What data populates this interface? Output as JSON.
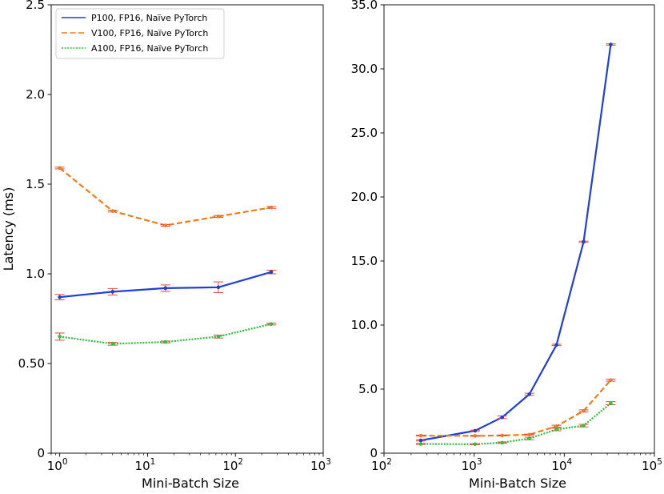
{
  "chart_data": [
    {
      "type": "line",
      "panel": "left",
      "xscale": "log",
      "xlim": [
        0.8,
        1000
      ],
      "ylim": [
        0,
        2.5
      ],
      "xlabel": "Mini-Batch Size",
      "ylabel": "Latency (ms)",
      "xticks": [
        {
          "value": 1,
          "base": "10",
          "exp": "0"
        },
        {
          "value": 10,
          "base": "10",
          "exp": "1"
        },
        {
          "value": 100,
          "base": "10",
          "exp": "2"
        },
        {
          "value": 1000,
          "base": "10",
          "exp": "3"
        }
      ],
      "yticks": [
        {
          "value": 0,
          "label": "0"
        },
        {
          "value": 0.5,
          "label": "0.50"
        },
        {
          "value": 1.0,
          "label": "1.0"
        },
        {
          "value": 1.5,
          "label": "1.5"
        },
        {
          "value": 2.0,
          "label": "2.0"
        },
        {
          "value": 2.5,
          "label": "2.5"
        }
      ],
      "legend_position": "top-left",
      "series": [
        {
          "name": "P100, FP16, Naïve PyTorch",
          "color": "#1f3fd8",
          "dash": "solid",
          "x": [
            1,
            4,
            16,
            64,
            256
          ],
          "y": [
            0.87,
            0.9,
            0.92,
            0.925,
            1.01
          ],
          "err": [
            0.015,
            0.018,
            0.018,
            0.03,
            0.01
          ]
        },
        {
          "name": "V100, FP16, Naïve PyTorch",
          "color": "#f07d18",
          "dash": "dashed",
          "x": [
            1,
            4,
            16,
            64,
            256
          ],
          "y": [
            1.59,
            1.35,
            1.27,
            1.32,
            1.37
          ],
          "err": [
            0.005,
            0.005,
            0.005,
            0.005,
            0.005
          ]
        },
        {
          "name": "A100, FP16, Naïve PyTorch",
          "color": "#2ec23a",
          "dash": "dotted",
          "x": [
            1,
            4,
            16,
            64,
            256
          ],
          "y": [
            0.65,
            0.61,
            0.62,
            0.65,
            0.72
          ],
          "err": [
            0.02,
            0.008,
            0.005,
            0.008,
            0.005
          ]
        }
      ]
    },
    {
      "type": "line",
      "panel": "right",
      "xscale": "log",
      "xlim": [
        100,
        100000
      ],
      "ylim": [
        0,
        35
      ],
      "xlabel": "Mini-Batch Size",
      "ylabel": "",
      "xticks": [
        {
          "value": 100,
          "base": "10",
          "exp": "2"
        },
        {
          "value": 1000,
          "base": "10",
          "exp": "3"
        },
        {
          "value": 10000,
          "base": "10",
          "exp": "4"
        },
        {
          "value": 100000,
          "base": "10",
          "exp": "5"
        }
      ],
      "yticks": [
        {
          "value": 0,
          "label": "0"
        },
        {
          "value": 5,
          "label": "5.0"
        },
        {
          "value": 10,
          "label": "10.0"
        },
        {
          "value": 15,
          "label": "15.0"
        },
        {
          "value": 20,
          "label": "20.0"
        },
        {
          "value": 25,
          "label": "25.0"
        },
        {
          "value": 30,
          "label": "30.0"
        },
        {
          "value": 35,
          "label": "35.0"
        }
      ],
      "series": [
        {
          "name": "P100, FP16, Naïve PyTorch",
          "color": "#1f3fd8",
          "dash": "solid",
          "x": [
            256,
            1024,
            2048,
            4096,
            8192,
            16384,
            32768
          ],
          "y": [
            1.0,
            1.75,
            2.8,
            4.6,
            8.45,
            16.5,
            31.9
          ],
          "err": [
            0.05,
            0.05,
            0.1,
            0.08,
            0.05,
            0.05,
            0.05
          ]
        },
        {
          "name": "V100, FP16, Naïve PyTorch",
          "color": "#f07d18",
          "dash": "dashed",
          "x": [
            256,
            1024,
            2048,
            4096,
            8192,
            16384,
            32768
          ],
          "y": [
            1.37,
            1.35,
            1.38,
            1.45,
            2.1,
            3.3,
            5.7
          ],
          "err": [
            0.03,
            0.03,
            0.03,
            0.03,
            0.08,
            0.08,
            0.08
          ]
        },
        {
          "name": "A100, FP16, Naïve PyTorch",
          "color": "#2ec23a",
          "dash": "dotted",
          "x": [
            256,
            1024,
            2048,
            4096,
            8192,
            16384,
            32768
          ],
          "y": [
            0.72,
            0.7,
            0.82,
            1.15,
            1.85,
            2.15,
            3.9
          ],
          "err": [
            0.03,
            0.03,
            0.05,
            0.1,
            0.1,
            0.1,
            0.12
          ]
        }
      ]
    }
  ]
}
